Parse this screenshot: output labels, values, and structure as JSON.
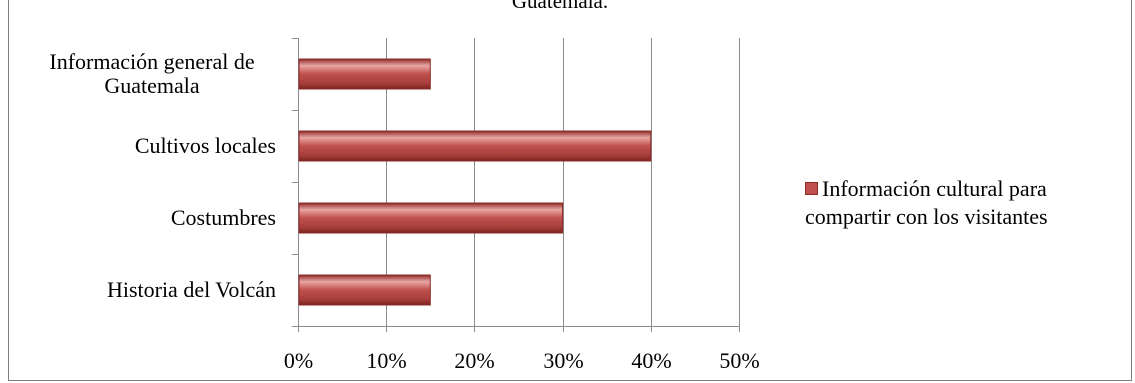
{
  "chart_data": {
    "type": "bar",
    "orientation": "horizontal",
    "title": "Guatemala.",
    "categories": [
      "Información general de Guatemala",
      "Cultivos locales",
      "Costumbres",
      "Historia del Volcán"
    ],
    "category_lines": [
      [
        "Información general de",
        "Guatemala"
      ],
      [
        "Cultivos locales"
      ],
      [
        "Costumbres"
      ],
      [
        "Historia del Volcán"
      ]
    ],
    "series": [
      {
        "name": "Información cultural para compartir con los visitantes",
        "values": [
          15,
          40,
          30,
          15
        ]
      }
    ],
    "xlim": [
      0,
      50
    ],
    "xticks": [
      "0%",
      "10%",
      "20%",
      "30%",
      "40%",
      "50%"
    ],
    "grid": true,
    "legend_position": "right"
  },
  "legend": {
    "lines": [
      "Información cultural para",
      "compartir con los visitantes"
    ]
  },
  "colors": {
    "bar": "#c0504d",
    "bar_dark": "#8c2a27",
    "bar_light": "#e8a6a3",
    "grid": "#8c8c8c"
  }
}
